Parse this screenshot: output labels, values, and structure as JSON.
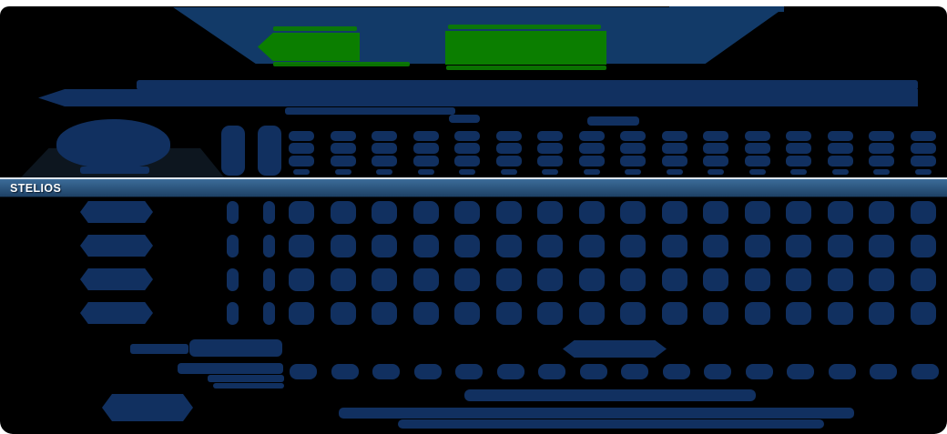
{
  "window": {
    "background": "#000000",
    "page_edge": "#ffffff"
  },
  "colors": {
    "navy_blob": "#113060",
    "banner": "#123a68",
    "green_button": "#0b7e00",
    "group_bar_top": "#3c6c99",
    "group_bar_bottom": "#1e4165",
    "group_bar_border": "#dfe7ee",
    "logo_backdrop": "#0d161f"
  },
  "group": {
    "label": "STELIOS"
  },
  "grid": {
    "column_count": 18,
    "tall_header_columns": 2,
    "row_count": 4,
    "bottom_pill_columns": 16
  },
  "icons": {
    "back_arrow": "left-arrow-flag"
  }
}
